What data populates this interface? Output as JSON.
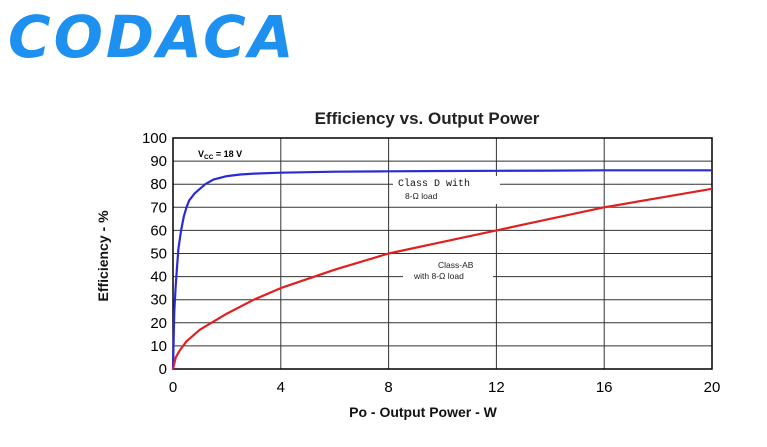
{
  "logo": {
    "text": "CODACA",
    "color": "#1e90f0"
  },
  "chart_data": {
    "type": "line",
    "title": "Efficiency vs. Output Power",
    "xlabel": "Po - Output Power - W",
    "ylabel": "Efficiency - %",
    "xlim": [
      0,
      20
    ],
    "ylim": [
      0,
      100
    ],
    "xticks": [
      "0",
      "4",
      "8",
      "12",
      "16",
      "20"
    ],
    "yticks": [
      "0",
      "10",
      "20",
      "30",
      "40",
      "50",
      "60",
      "70",
      "80",
      "90",
      "100"
    ],
    "grid": true,
    "annotations": {
      "vcc": {
        "main": "V",
        "sub": "CC",
        "rest": " = 18 V"
      },
      "classd_line1": "Class D with",
      "classd_line2": "8-Ω load",
      "classab_line1": "Class-AB",
      "classab_line2": "with 8-Ω load"
    },
    "series": [
      {
        "color": "#2b2bd6",
        "x": [
          0,
          0.05,
          0.1,
          0.15,
          0.2,
          0.3,
          0.4,
          0.5,
          0.6,
          0.8,
          1.0,
          1.2,
          1.5,
          2,
          2.5,
          3,
          4,
          6,
          8,
          10,
          12,
          14,
          16,
          18,
          20
        ],
        "y": [
          0,
          25,
          36,
          44,
          52,
          60,
          66,
          70,
          73,
          76,
          78,
          80,
          82,
          83.5,
          84.2,
          84.6,
          85,
          85.4,
          85.6,
          85.7,
          85.8,
          85.9,
          86,
          86,
          86
        ]
      },
      {
        "color": "#e02020",
        "x": [
          0,
          0.1,
          0.25,
          0.5,
          1,
          2,
          3,
          4,
          6,
          8,
          10,
          12,
          14,
          16,
          18,
          20
        ],
        "y": [
          0,
          5,
          8,
          12,
          17,
          24,
          30,
          35,
          43,
          50,
          55,
          60,
          65,
          70,
          74,
          78
        ]
      }
    ]
  }
}
